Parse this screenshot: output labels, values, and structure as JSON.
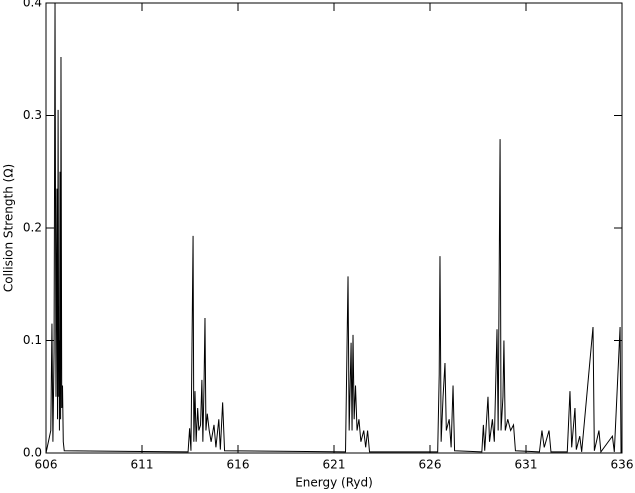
{
  "chart_data": {
    "type": "line",
    "x_label": "Energy (Ryd)",
    "y_label": "Collision Strength (Ω)",
    "x": [
      606.0,
      606.25,
      606.31,
      606.36,
      606.42,
      606.47,
      606.52,
      606.57,
      606.6,
      606.63,
      606.66,
      606.68,
      606.7,
      606.73,
      606.76,
      606.78,
      606.82,
      606.86,
      606.9,
      606.95,
      613.4,
      613.48,
      613.55,
      613.66,
      613.7,
      613.76,
      613.82,
      613.9,
      613.96,
      614.05,
      614.12,
      614.17,
      614.23,
      614.28,
      614.33,
      614.4,
      614.5,
      614.6,
      614.75,
      614.85,
      615.0,
      615.08,
      615.2,
      615.3,
      621.6,
      621.73,
      621.79,
      621.89,
      621.94,
      621.99,
      622.05,
      622.12,
      622.2,
      622.3,
      622.4,
      622.55,
      622.65,
      622.75,
      622.85,
      626.4,
      626.48,
      626.52,
      626.58,
      626.68,
      626.78,
      626.85,
      627.0,
      627.1,
      627.2,
      627.28,
      628.7,
      628.78,
      628.85,
      629.02,
      629.1,
      629.25,
      629.35,
      629.49,
      629.55,
      629.65,
      629.7,
      629.8,
      629.85,
      629.92,
      630.05,
      630.2,
      630.35,
      630.45,
      631.7,
      631.83,
      631.95,
      632.2,
      632.3,
      633.15,
      633.29,
      633.38,
      633.55,
      633.62,
      633.8,
      633.9,
      634.49,
      634.56,
      634.8,
      634.9,
      635.5,
      635.6,
      635.9,
      635.95,
      636.0
    ],
    "series": [
      {
        "color": "#000000",
        "values": [
          0,
          0.02,
          0.115,
          0.01,
          0.09,
          0.4,
          0.05,
          0.235,
          0.03,
          0.305,
          0.05,
          0.1,
          0.02,
          0.25,
          0.03,
          0.352,
          0.04,
          0.06,
          0.01,
          0.002,
          0.001,
          0.022,
          0.002,
          0.193,
          0.01,
          0.055,
          0.01,
          0.04,
          0.02,
          0.025,
          0.065,
          0.01,
          0.06,
          0.12,
          0.02,
          0.035,
          0.02,
          0.01,
          0.025,
          0.005,
          0.03,
          0.003,
          0.045,
          0.002,
          0.001,
          0.157,
          0.02,
          0.098,
          0.02,
          0.105,
          0.03,
          0.06,
          0.02,
          0.03,
          0.01,
          0.02,
          0.005,
          0.02,
          0.001,
          0.001,
          0.07,
          0.175,
          0.01,
          0.05,
          0.08,
          0.02,
          0.03,
          0.005,
          0.06,
          0.002,
          0.001,
          0.025,
          0.002,
          0.05,
          0.01,
          0.03,
          0.01,
          0.11,
          0.02,
          0.279,
          0.02,
          0.05,
          0.1,
          0.02,
          0.03,
          0.02,
          0.025,
          0.002,
          0.001,
          0.02,
          0.005,
          0.02,
          0.001,
          0.001,
          0.055,
          0.005,
          0.04,
          0.003,
          0.015,
          0.001,
          0.112,
          0.002,
          0.02,
          0.001,
          0.015,
          0.001,
          0.112,
          0,
          0
        ]
      }
    ],
    "xlim": [
      606,
      636
    ],
    "ylim": [
      0,
      0.4
    ],
    "xticks": [
      606,
      611,
      616,
      621,
      626,
      631,
      636
    ],
    "yticks": [
      {
        "value": 0,
        "label": "0.0"
      },
      0.1,
      0.2,
      0.3,
      0.4
    ]
  }
}
